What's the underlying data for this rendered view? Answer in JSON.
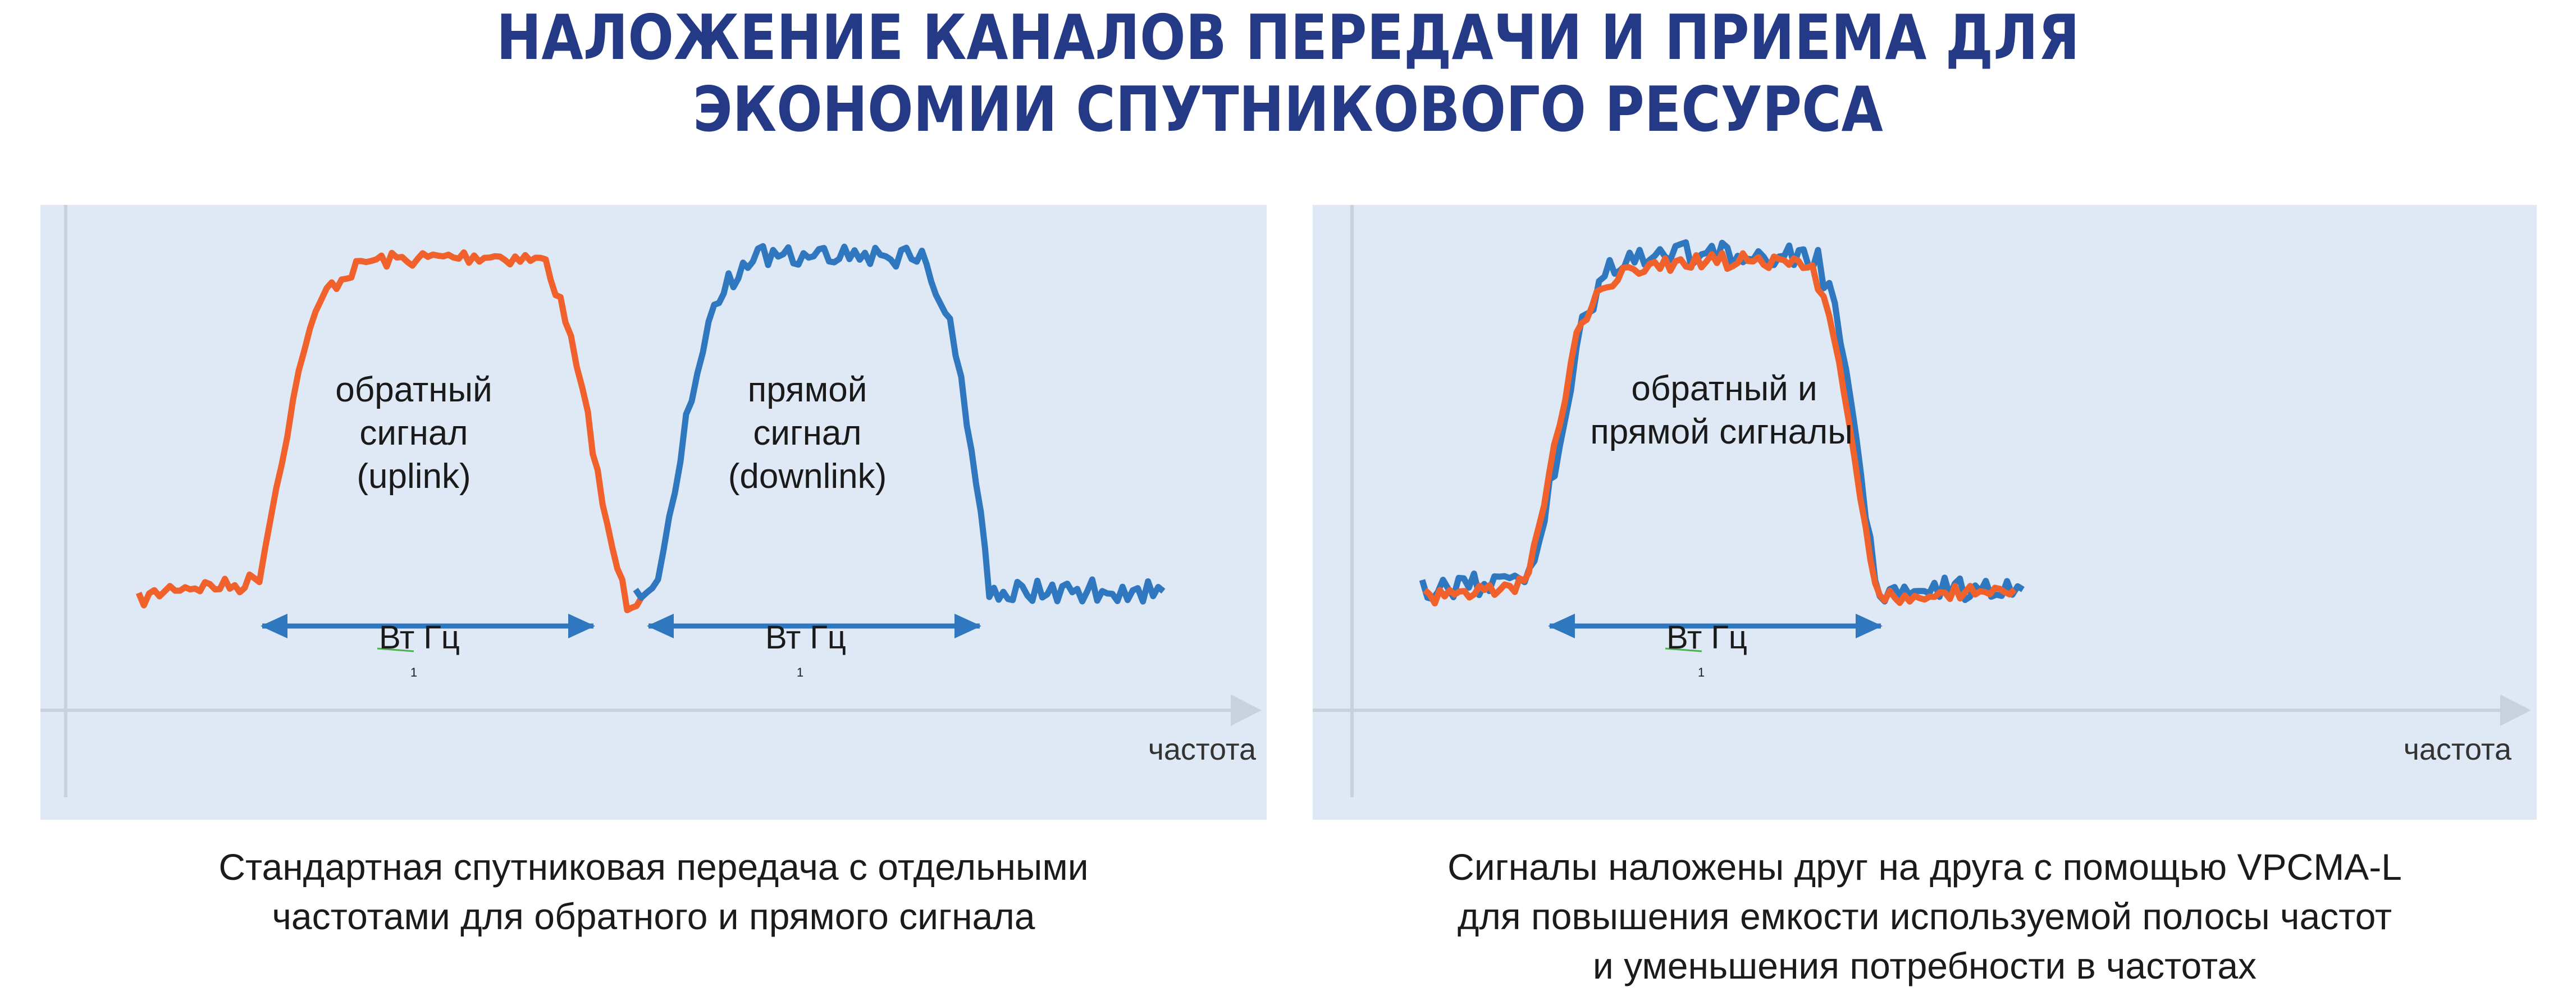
{
  "header": {
    "title_line1": "НАЛОЖЕНИЕ КАНАЛОВ ПЕРЕДАЧИ И ПРИЕМА ДЛЯ",
    "title_line2": "ЭКОНОМИИ СПУТНИКОВОГО РЕСУРСА"
  },
  "colors": {
    "uplink": "#f0612b",
    "downlink": "#2f78c0",
    "arrow": "#2f78c0",
    "panel_bg": "#dfe9f6",
    "axis": "#c8d1dc",
    "title": "#253a86"
  },
  "left_panel": {
    "uplink_label": [
      "обратный",
      "сигнал",
      "(uplink)"
    ],
    "downlink_label": [
      "прямой",
      "сигнал",
      "(downlink)"
    ],
    "bandwidth_label_1": "Вт Гц",
    "bandwidth_label_2": "Вт Гц",
    "subscript": "1",
    "x_axis_label": "частота",
    "caption_line1": "Стандартная спутниковая передача с отдельными",
    "caption_line2": "частотами для обратного и прямого сигнала"
  },
  "right_panel": {
    "overlap_label": [
      "обратный и",
      "прямой сигналы"
    ],
    "bandwidth_label": "Вт Гц",
    "subscript": "1",
    "x_axis_label": "частота",
    "caption_line1": "Сигналы наложены друг на друга с помощью VPCMA-L",
    "caption_line2": "для повышения емкости используемой полосы частот",
    "caption_line3": "и уменьшения потребности в частотах"
  }
}
